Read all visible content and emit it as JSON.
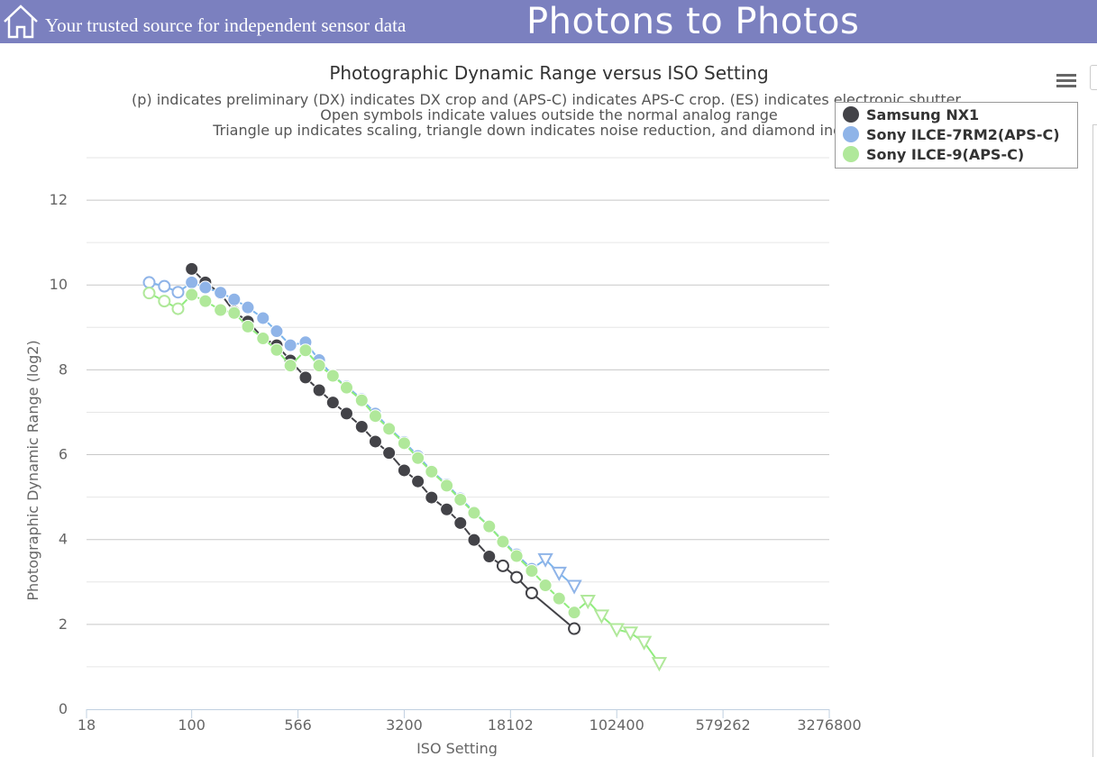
{
  "header": {
    "tagline": "Your trusted source for independent sensor data",
    "site_title": "Photons to Photos"
  },
  "chart_data": {
    "type": "line",
    "title": "Photographic Dynamic Range versus ISO Setting",
    "subtitle_lines": [
      "(p) indicates preliminary (DX) indicates DX crop and (APS-C) indicates APS-C crop. (ES) indicates electronic shutter",
      "Open symbols indicate values outside the normal analog range",
      "Triangle up indicates scaling, triangle down indicates noise reduction, and diamond indicates"
    ],
    "xlabel": "ISO Setting",
    "ylabel": "Photographic Dynamic Range (log2)",
    "x_scale": "log",
    "x_ticks": [
      "18",
      "100",
      "566",
      "3200",
      "18102",
      "102400",
      "579262",
      "3276800"
    ],
    "y_ticks": [
      "0",
      "2",
      "4",
      "6",
      "8",
      "10",
      "12"
    ],
    "ylim": [
      0,
      13
    ],
    "grid": true,
    "legend_position": "top-right",
    "series": [
      {
        "name": "Samsung NX1",
        "color": "#434348",
        "points": [
          {
            "x": 100,
            "y": 10.38,
            "m": "filled"
          },
          {
            "x": 125,
            "y": 10.06,
            "m": "filled"
          },
          {
            "x": 160,
            "y": 9.8,
            "m": "filled"
          },
          {
            "x": 200,
            "y": 9.37,
            "m": "filled"
          },
          {
            "x": 250,
            "y": 9.14,
            "m": "filled"
          },
          {
            "x": 320,
            "y": 8.75,
            "m": "filled"
          },
          {
            "x": 400,
            "y": 8.58,
            "m": "filled"
          },
          {
            "x": 500,
            "y": 8.22,
            "m": "filled"
          },
          {
            "x": 640,
            "y": 7.82,
            "m": "filled"
          },
          {
            "x": 800,
            "y": 7.52,
            "m": "filled"
          },
          {
            "x": 1000,
            "y": 7.23,
            "m": "filled"
          },
          {
            "x": 1250,
            "y": 6.97,
            "m": "filled"
          },
          {
            "x": 1600,
            "y": 6.66,
            "m": "filled"
          },
          {
            "x": 2000,
            "y": 6.31,
            "m": "filled"
          },
          {
            "x": 2500,
            "y": 6.04,
            "m": "filled"
          },
          {
            "x": 3200,
            "y": 5.63,
            "m": "filled"
          },
          {
            "x": 4000,
            "y": 5.37,
            "m": "filled"
          },
          {
            "x": 5000,
            "y": 4.99,
            "m": "filled"
          },
          {
            "x": 6400,
            "y": 4.71,
            "m": "filled"
          },
          {
            "x": 8000,
            "y": 4.39,
            "m": "filled"
          },
          {
            "x": 10000,
            "y": 3.99,
            "m": "filled"
          },
          {
            "x": 12800,
            "y": 3.6,
            "m": "filled"
          },
          {
            "x": 16000,
            "y": 3.38,
            "m": "open"
          },
          {
            "x": 20000,
            "y": 3.11,
            "m": "open"
          },
          {
            "x": 25600,
            "y": 2.74,
            "m": "open"
          },
          {
            "x": 51200,
            "y": 1.9,
            "m": "open"
          }
        ]
      },
      {
        "name": "Sony ILCE-7RM2(APS-C)",
        "color": "#7cb5ec",
        "points": [
          {
            "x": 50,
            "y": 10.06,
            "m": "open"
          },
          {
            "x": 64,
            "y": 9.97,
            "m": "open"
          },
          {
            "x": 80,
            "y": 9.83,
            "m": "open"
          },
          {
            "x": 100,
            "y": 10.06,
            "m": "filled"
          },
          {
            "x": 125,
            "y": 9.94,
            "m": "filled"
          },
          {
            "x": 160,
            "y": 9.82,
            "m": "filled"
          },
          {
            "x": 200,
            "y": 9.66,
            "m": "filled"
          },
          {
            "x": 250,
            "y": 9.47,
            "m": "filled"
          },
          {
            "x": 320,
            "y": 9.22,
            "m": "filled"
          },
          {
            "x": 400,
            "y": 8.91,
            "m": "filled"
          },
          {
            "x": 500,
            "y": 8.58,
            "m": "filled"
          },
          {
            "x": 640,
            "y": 8.65,
            "m": "filled"
          },
          {
            "x": 800,
            "y": 8.23,
            "m": "filled"
          },
          {
            "x": 1000,
            "y": 7.86,
            "m": "filled"
          },
          {
            "x": 1250,
            "y": 7.61,
            "m": "filled"
          },
          {
            "x": 1600,
            "y": 7.31,
            "m": "filled"
          },
          {
            "x": 2000,
            "y": 6.97,
            "m": "filled"
          },
          {
            "x": 2500,
            "y": 6.63,
            "m": "filled"
          },
          {
            "x": 3200,
            "y": 6.3,
            "m": "filled"
          },
          {
            "x": 4000,
            "y": 5.97,
            "m": "filled"
          },
          {
            "x": 5000,
            "y": 5.62,
            "m": "filled"
          },
          {
            "x": 6400,
            "y": 5.3,
            "m": "filled"
          },
          {
            "x": 8000,
            "y": 4.97,
            "m": "filled"
          },
          {
            "x": 10000,
            "y": 4.65,
            "m": "filled"
          },
          {
            "x": 12800,
            "y": 4.31,
            "m": "filled"
          },
          {
            "x": 16000,
            "y": 3.97,
            "m": "filled"
          },
          {
            "x": 20000,
            "y": 3.65,
            "m": "filled"
          },
          {
            "x": 25600,
            "y": 3.31,
            "m": "filled"
          },
          {
            "x": 32000,
            "y": 3.53,
            "m": "triangle-down"
          },
          {
            "x": 40000,
            "y": 3.21,
            "m": "triangle-down"
          },
          {
            "x": 51200,
            "y": 2.9,
            "m": "triangle-down"
          }
        ]
      },
      {
        "name": "Sony ILCE-9(APS-C)",
        "color": "#90ed7d",
        "points": [
          {
            "x": 50,
            "y": 9.81,
            "m": "open"
          },
          {
            "x": 64,
            "y": 9.62,
            "m": "open"
          },
          {
            "x": 80,
            "y": 9.44,
            "m": "open"
          },
          {
            "x": 100,
            "y": 9.77,
            "m": "filled"
          },
          {
            "x": 125,
            "y": 9.62,
            "m": "filled"
          },
          {
            "x": 160,
            "y": 9.41,
            "m": "filled"
          },
          {
            "x": 200,
            "y": 9.34,
            "m": "filled"
          },
          {
            "x": 250,
            "y": 9.02,
            "m": "filled"
          },
          {
            "x": 320,
            "y": 8.74,
            "m": "filled"
          },
          {
            "x": 400,
            "y": 8.47,
            "m": "filled"
          },
          {
            "x": 500,
            "y": 8.1,
            "m": "filled"
          },
          {
            "x": 640,
            "y": 8.46,
            "m": "filled"
          },
          {
            "x": 800,
            "y": 8.1,
            "m": "filled"
          },
          {
            "x": 1000,
            "y": 7.86,
            "m": "filled"
          },
          {
            "x": 1250,
            "y": 7.58,
            "m": "filled"
          },
          {
            "x": 1600,
            "y": 7.28,
            "m": "filled"
          },
          {
            "x": 2000,
            "y": 6.91,
            "m": "filled"
          },
          {
            "x": 2500,
            "y": 6.61,
            "m": "filled"
          },
          {
            "x": 3200,
            "y": 6.27,
            "m": "filled"
          },
          {
            "x": 4000,
            "y": 5.92,
            "m": "filled"
          },
          {
            "x": 5000,
            "y": 5.6,
            "m": "filled"
          },
          {
            "x": 6400,
            "y": 5.27,
            "m": "filled"
          },
          {
            "x": 8000,
            "y": 4.94,
            "m": "filled"
          },
          {
            "x": 10000,
            "y": 4.63,
            "m": "filled"
          },
          {
            "x": 12800,
            "y": 4.31,
            "m": "filled"
          },
          {
            "x": 16000,
            "y": 3.95,
            "m": "filled"
          },
          {
            "x": 20000,
            "y": 3.61,
            "m": "filled"
          },
          {
            "x": 25600,
            "y": 3.26,
            "m": "filled"
          },
          {
            "x": 32000,
            "y": 2.92,
            "m": "filled"
          },
          {
            "x": 40000,
            "y": 2.61,
            "m": "filled"
          },
          {
            "x": 51200,
            "y": 2.28,
            "m": "filled"
          },
          {
            "x": 64000,
            "y": 2.55,
            "m": "triangle-down"
          },
          {
            "x": 80000,
            "y": 2.2,
            "m": "triangle-down"
          },
          {
            "x": 102400,
            "y": 1.88,
            "m": "triangle-down"
          },
          {
            "x": 128000,
            "y": 1.8,
            "m": "triangle-down"
          },
          {
            "x": 160000,
            "y": 1.58,
            "m": "triangle-down"
          },
          {
            "x": 204800,
            "y": 1.08,
            "m": "triangle-down"
          }
        ]
      }
    ]
  }
}
